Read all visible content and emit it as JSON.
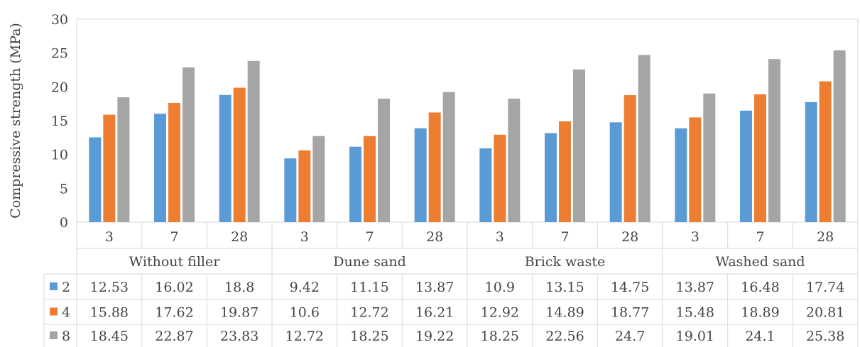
{
  "chart_data": {
    "type": "bar",
    "title": "",
    "xlabel": "",
    "ylabel": "Compressive strength (MPa)",
    "ylim": [
      0,
      30
    ],
    "yticks": [
      0,
      5,
      10,
      15,
      20,
      25,
      30
    ],
    "grid": false,
    "legend": "data-table-left",
    "groups": [
      {
        "label": "Without filler",
        "categories": [
          "3",
          "7",
          "28"
        ]
      },
      {
        "label": "Dune sand",
        "categories": [
          "3",
          "7",
          "28"
        ]
      },
      {
        "label": "Brick waste",
        "categories": [
          "3",
          "7",
          "28"
        ]
      },
      {
        "label": "Washed sand",
        "categories": [
          "3",
          "7",
          "28"
        ]
      }
    ],
    "series": [
      {
        "name": "2",
        "color": "#5b9bd5",
        "values": [
          12.53,
          16.02,
          18.8,
          9.42,
          11.15,
          13.87,
          10.9,
          13.15,
          14.75,
          13.87,
          16.48,
          17.74
        ]
      },
      {
        "name": "4",
        "color": "#ed7d31",
        "values": [
          15.88,
          17.62,
          19.87,
          10.6,
          12.72,
          16.21,
          12.92,
          14.89,
          18.77,
          15.48,
          18.89,
          20.81
        ]
      },
      {
        "name": "8",
        "color": "#a5a5a5",
        "values": [
          18.45,
          22.87,
          23.83,
          12.72,
          18.25,
          19.22,
          18.25,
          22.56,
          24.7,
          19.01,
          24.1,
          25.38
        ]
      }
    ]
  }
}
